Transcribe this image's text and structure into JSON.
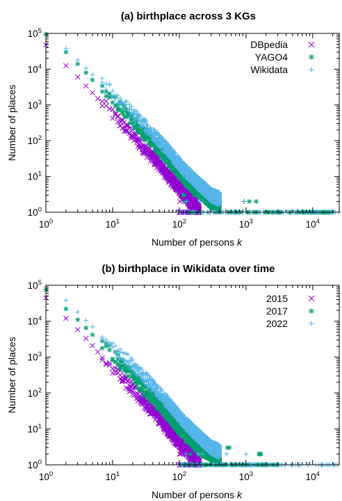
{
  "chart_data": [
    {
      "type": "scatter",
      "title": "(a) birthplace across 3 KGs",
      "xlabel": "Number of persons k",
      "ylabel": "Number of places",
      "xscale": "log",
      "yscale": "log",
      "xlim": [
        1,
        25000
      ],
      "ylim": [
        1,
        100000
      ],
      "x_ticks": [
        "10^0",
        "10^1",
        "10^2",
        "10^3",
        "10^4"
      ],
      "y_ticks": [
        "10^0",
        "10^1",
        "10^2",
        "10^3",
        "10^4",
        "10^5"
      ],
      "legend_position": "top-right",
      "series": [
        {
          "name": "DBpedia",
          "marker": "x",
          "color": "#9400d3",
          "x": [
            1,
            2,
            3,
            4,
            5,
            6,
            8,
            10,
            15,
            20,
            30,
            50,
            70,
            100,
            150,
            200
          ],
          "y": [
            48000,
            12500,
            6000,
            3400,
            2200,
            1500,
            850,
            550,
            250,
            140,
            60,
            22,
            10,
            5,
            2,
            1
          ]
        },
        {
          "name": "YAGO4",
          "marker": "*",
          "color": "#009e73",
          "x": [
            1,
            2,
            3,
            4,
            5,
            7,
            10,
            15,
            20,
            30,
            50,
            80,
            100,
            150,
            200,
            300,
            500,
            1000,
            2000,
            5000,
            20000
          ],
          "y": [
            95000,
            30000,
            14000,
            8000,
            5000,
            2800,
            1500,
            650,
            370,
            160,
            60,
            22,
            14,
            6,
            4,
            2,
            1.5,
            1,
            1,
            1,
            1
          ]
        },
        {
          "name": "Wikidata",
          "marker": "+",
          "color": "#56b4e9",
          "x": [
            1,
            2,
            3,
            4,
            5,
            7,
            10,
            15,
            20,
            30,
            50,
            80,
            100,
            150,
            200,
            300,
            500,
            1000,
            2000,
            4000,
            10000,
            25000
          ],
          "y": [
            90000,
            38000,
            18000,
            10500,
            7000,
            4000,
            2200,
            1000,
            600,
            280,
            100,
            38,
            22,
            10,
            6,
            3,
            2,
            1.5,
            1,
            1,
            1,
            1
          ]
        }
      ]
    },
    {
      "type": "scatter",
      "title": "(b) birthplace in Wikidata over time",
      "xlabel": "Number of persons k",
      "ylabel": "Number of places",
      "xscale": "log",
      "yscale": "log",
      "xlim": [
        1,
        25000
      ],
      "ylim": [
        1,
        100000
      ],
      "x_ticks": [
        "10^0",
        "10^1",
        "10^2",
        "10^3",
        "10^4"
      ],
      "y_ticks": [
        "10^0",
        "10^1",
        "10^2",
        "10^3",
        "10^4",
        "10^5"
      ],
      "legend_position": "top-right",
      "series": [
        {
          "name": "2015",
          "marker": "x",
          "color": "#9400d3",
          "x": [
            1,
            2,
            3,
            4,
            5,
            6,
            8,
            10,
            15,
            20,
            30,
            50,
            70,
            100,
            150,
            200
          ],
          "y": [
            45000,
            12000,
            5800,
            3300,
            2100,
            1400,
            800,
            500,
            230,
            130,
            55,
            20,
            9,
            4.5,
            2,
            1
          ]
        },
        {
          "name": "2017",
          "marker": "*",
          "color": "#009e73",
          "x": [
            1,
            2,
            3,
            4,
            5,
            7,
            10,
            15,
            20,
            30,
            50,
            80,
            100,
            150,
            200,
            300,
            500,
            1000,
            3000
          ],
          "y": [
            75000,
            22000,
            11000,
            6500,
            4200,
            2300,
            1200,
            520,
            300,
            130,
            48,
            18,
            11,
            5,
            3,
            2,
            1.5,
            1,
            1
          ]
        },
        {
          "name": "2022",
          "marker": "+",
          "color": "#56b4e9",
          "x": [
            1,
            2,
            3,
            4,
            5,
            7,
            10,
            15,
            20,
            30,
            50,
            80,
            100,
            150,
            200,
            300,
            500,
            1000,
            2000,
            4000,
            10000,
            25000
          ],
          "y": [
            90000,
            38000,
            18000,
            10500,
            7000,
            4000,
            2200,
            1000,
            600,
            280,
            100,
            38,
            22,
            10,
            6,
            3,
            2,
            1.5,
            1,
            1,
            1,
            1
          ]
        }
      ]
    }
  ]
}
